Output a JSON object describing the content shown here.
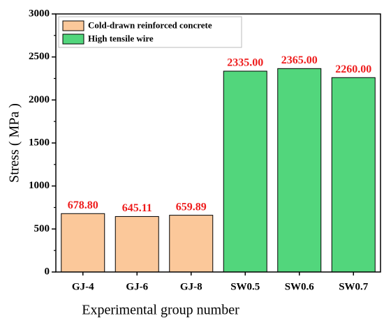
{
  "chart_data": {
    "type": "bar",
    "xlabel": "Experimental group number",
    "ylabel": "Stress ( MPa )",
    "categories": [
      "GJ-4",
      "GJ-6",
      "GJ-8",
      "SW0.5",
      "SW0.6",
      "SW0.7"
    ],
    "series": [
      {
        "name": "Cold-drawn reinforced concrete",
        "color": "#fbc89a",
        "values": [
          678.8,
          645.11,
          659.89,
          null,
          null,
          null
        ],
        "value_labels": [
          "678.80",
          "645.11",
          "659.89",
          null,
          null,
          null
        ]
      },
      {
        "name": "High tensile wire",
        "color": "#52d67c",
        "values": [
          null,
          null,
          null,
          2335,
          2365,
          2260
        ],
        "value_labels": [
          null,
          null,
          null,
          "2335.00",
          "2365.00",
          "2260.00"
        ]
      }
    ],
    "value_label_color": "#ee1c1c",
    "ylim": [
      0,
      3000
    ],
    "yticks": [
      0,
      500,
      1000,
      1500,
      2000,
      2500,
      3000
    ],
    "legend": "upper left",
    "grid": false
  }
}
